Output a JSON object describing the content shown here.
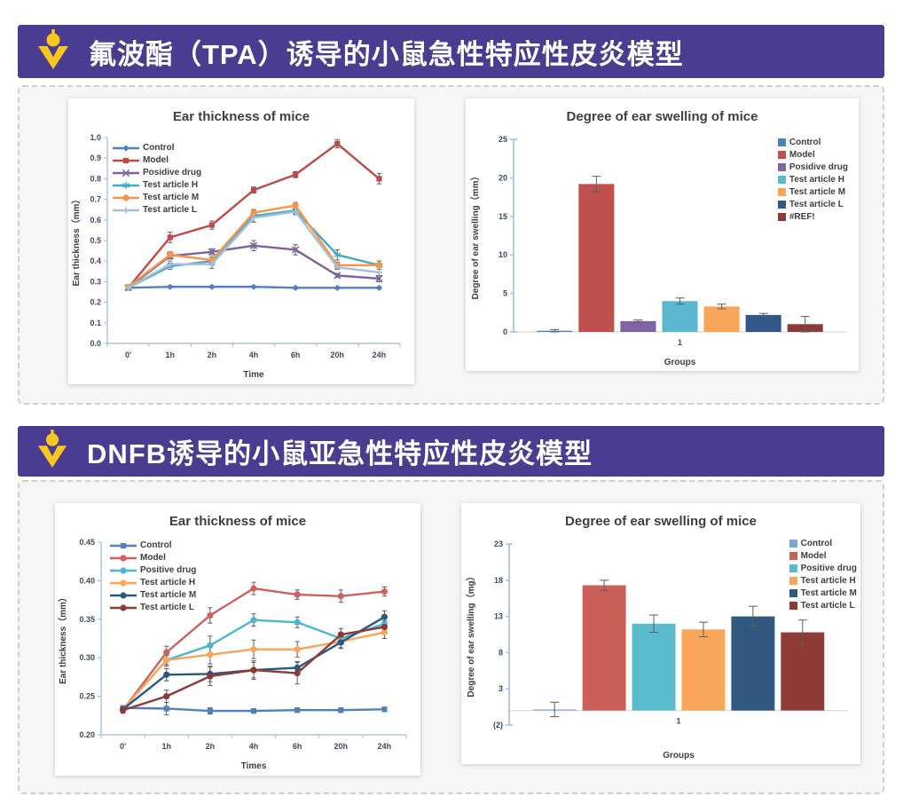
{
  "sections": [
    {
      "banner_title": "氟波酯（TPA）诱导的小鼠急性特应性皮炎模型",
      "banner_bg": "#4A3C91",
      "icon_color": "#F8C61C"
    },
    {
      "banner_title": "DNFB诱导的小鼠亚急性特应性皮炎模型",
      "banner_bg": "#4A3C91",
      "icon_color": "#F8C61C"
    }
  ],
  "chart_data": [
    {
      "type": "line",
      "title": "Ear thickness of mice",
      "xlabel": "Time",
      "ylabel": "Ear thickness（mm）",
      "categories": [
        "0'",
        "1h",
        "2h",
        "4h",
        "6h",
        "20h",
        "24h"
      ],
      "ylim": [
        0.0,
        1.0
      ],
      "ytick_step": 0.1,
      "ydecimals": 1,
      "grid": false,
      "legend_position": "inside-top-left",
      "series": [
        {
          "name": "Control",
          "color": "#4E81BD",
          "marker": "diamond",
          "values": [
            0.27,
            0.275,
            0.275,
            0.275,
            0.27,
            0.27,
            0.27
          ],
          "errors": [
            0.005,
            0.005,
            0.005,
            0.005,
            0.005,
            0.005,
            0.005
          ]
        },
        {
          "name": "Model",
          "color": "#BE4B48",
          "marker": "square",
          "values": [
            0.27,
            0.515,
            0.575,
            0.745,
            0.82,
            0.97,
            0.8
          ],
          "errors": [
            0.01,
            0.025,
            0.02,
            0.015,
            0.015,
            0.02,
            0.025
          ]
        },
        {
          "name": "Posidive drug",
          "color": "#7E62A1",
          "marker": "x",
          "values": [
            0.27,
            0.425,
            0.445,
            0.475,
            0.455,
            0.33,
            0.315
          ],
          "errors": [
            0.01,
            0.015,
            0.015,
            0.025,
            0.025,
            0.01,
            0.015
          ]
        },
        {
          "name": "Test article H",
          "color": "#45AAC4",
          "marker": "asterisk",
          "values": [
            0.27,
            0.375,
            0.4,
            0.62,
            0.645,
            0.43,
            0.38
          ],
          "errors": [
            0.01,
            0.015,
            0.02,
            0.03,
            0.015,
            0.025,
            0.02
          ]
        },
        {
          "name": "Test article M",
          "color": "#F79646",
          "marker": "circle",
          "values": [
            0.275,
            0.43,
            0.405,
            0.635,
            0.67,
            0.38,
            0.38
          ],
          "errors": [
            0.01,
            0.015,
            0.015,
            0.015,
            0.015,
            0.015,
            0.01
          ]
        },
        {
          "name": "Test article L",
          "color": "#A7BFDE",
          "marker": "plus",
          "values": [
            0.27,
            0.385,
            0.385,
            0.61,
            0.64,
            0.37,
            0.345
          ],
          "errors": [
            0.01,
            0.015,
            0.02,
            0.02,
            0.015,
            0.01,
            0.015
          ]
        }
      ]
    },
    {
      "type": "bar",
      "title": "Degree of ear swelling of mice",
      "xlabel": "Groups",
      "ylabel": "Degree of ear swelling（mm）",
      "categories": [
        "1"
      ],
      "ylim": [
        0,
        25
      ],
      "yticks": [
        0,
        5,
        10,
        15,
        20,
        25
      ],
      "ytick_labels": [
        "0",
        "5",
        "10",
        "15",
        "20",
        "25"
      ],
      "grid": false,
      "legend_position": "right",
      "series": [
        {
          "name": "Control",
          "color": "#4E81BD",
          "values": [
            0.15
          ],
          "errors": [
            0.15
          ]
        },
        {
          "name": "Model",
          "color": "#C0504D",
          "values": [
            19.2
          ],
          "errors": [
            1.0
          ]
        },
        {
          "name": "Posidive drug",
          "color": "#8064A2",
          "values": [
            1.4
          ],
          "errors": [
            0.15
          ]
        },
        {
          "name": "Test article H",
          "color": "#5BB8D0",
          "values": [
            4.0
          ],
          "errors": [
            0.4
          ]
        },
        {
          "name": "Test article M",
          "color": "#F9A65B",
          "values": [
            3.3
          ],
          "errors": [
            0.3
          ]
        },
        {
          "name": "Test article L",
          "color": "#31588A",
          "values": [
            2.2
          ],
          "errors": [
            0.2
          ]
        },
        {
          "name": "#REF!",
          "color": "#8C3A36",
          "values": [
            1.0
          ],
          "errors": [
            1.0
          ]
        }
      ]
    },
    {
      "type": "line",
      "title": "Ear thickness of mice",
      "xlabel": "Times",
      "ylabel": "Ear thickness（mm）",
      "categories": [
        "0'",
        "1h",
        "2h",
        "4h",
        "6h",
        "20h",
        "24h"
      ],
      "ylim": [
        0.2,
        0.45
      ],
      "ytick_step": 0.05,
      "ydecimals": 2,
      "grid": false,
      "legend_position": "inside-top-left",
      "series": [
        {
          "name": "Control",
          "color": "#4F81BD",
          "marker": "square",
          "values": [
            0.235,
            0.234,
            0.231,
            0.231,
            0.232,
            0.232,
            0.233
          ],
          "errors": [
            0.003,
            0.008,
            0.004,
            0.003,
            0.003,
            0.003,
            0.003
          ]
        },
        {
          "name": "Model",
          "color": "#D0605C",
          "marker": "circle",
          "values": [
            0.232,
            0.307,
            0.355,
            0.39,
            0.382,
            0.38,
            0.386
          ],
          "errors": [
            0.004,
            0.008,
            0.01,
            0.008,
            0.006,
            0.008,
            0.006
          ]
        },
        {
          "name": "Positive drug",
          "color": "#4BB8CD",
          "marker": "circle",
          "values": [
            0.233,
            0.297,
            0.316,
            0.349,
            0.346,
            0.325,
            0.344
          ],
          "errors": [
            0.004,
            0.006,
            0.012,
            0.008,
            0.007,
            0.008,
            0.008
          ]
        },
        {
          "name": "Test article H",
          "color": "#F9A65B",
          "marker": "circle",
          "values": [
            0.233,
            0.297,
            0.304,
            0.311,
            0.311,
            0.321,
            0.333
          ],
          "errors": [
            0.004,
            0.008,
            0.012,
            0.012,
            0.01,
            0.008,
            0.008
          ]
        },
        {
          "name": "Test article M",
          "color": "#2A5783",
          "marker": "circle",
          "values": [
            0.233,
            0.278,
            0.279,
            0.284,
            0.287,
            0.32,
            0.353
          ],
          "errors": [
            0.004,
            0.008,
            0.01,
            0.01,
            0.008,
            0.008,
            0.008
          ]
        },
        {
          "name": "Test article L",
          "color": "#8E3B38",
          "marker": "circle",
          "values": [
            0.232,
            0.25,
            0.276,
            0.284,
            0.28,
            0.33,
            0.34
          ],
          "errors": [
            0.004,
            0.008,
            0.012,
            0.012,
            0.014,
            0.008,
            0.008
          ]
        }
      ]
    },
    {
      "type": "bar",
      "title": "Degree of ear swelling of mice",
      "xlabel": "Groups",
      "ylabel": "Degree of ear swelling（mg）",
      "categories": [
        "1"
      ],
      "ylim": [
        -2,
        23
      ],
      "yticks": [
        -2,
        3,
        8,
        13,
        18,
        23
      ],
      "ytick_labels": [
        "(2)",
        "3",
        "8",
        "13",
        "18",
        "23"
      ],
      "negative_tick_color": "#FF0000",
      "grid": false,
      "legend_position": "right",
      "series": [
        {
          "name": "Control",
          "color": "#7EA6D8",
          "values": [
            0.15
          ],
          "errors": [
            1.0
          ]
        },
        {
          "name": "Model",
          "color": "#CB6058",
          "values": [
            17.3
          ],
          "errors": [
            0.7
          ]
        },
        {
          "name": "Positive drug",
          "color": "#5BBCCE",
          "values": [
            12.0
          ],
          "errors": [
            1.2
          ]
        },
        {
          "name": "Test article H",
          "color": "#F9A65B",
          "values": [
            11.2
          ],
          "errors": [
            1.0
          ]
        },
        {
          "name": "Test article M",
          "color": "#31587F",
          "values": [
            13.0
          ],
          "errors": [
            1.4
          ]
        },
        {
          "name": "Test article L",
          "color": "#8E3B38",
          "values": [
            10.8
          ],
          "errors": [
            1.7
          ]
        }
      ]
    }
  ]
}
